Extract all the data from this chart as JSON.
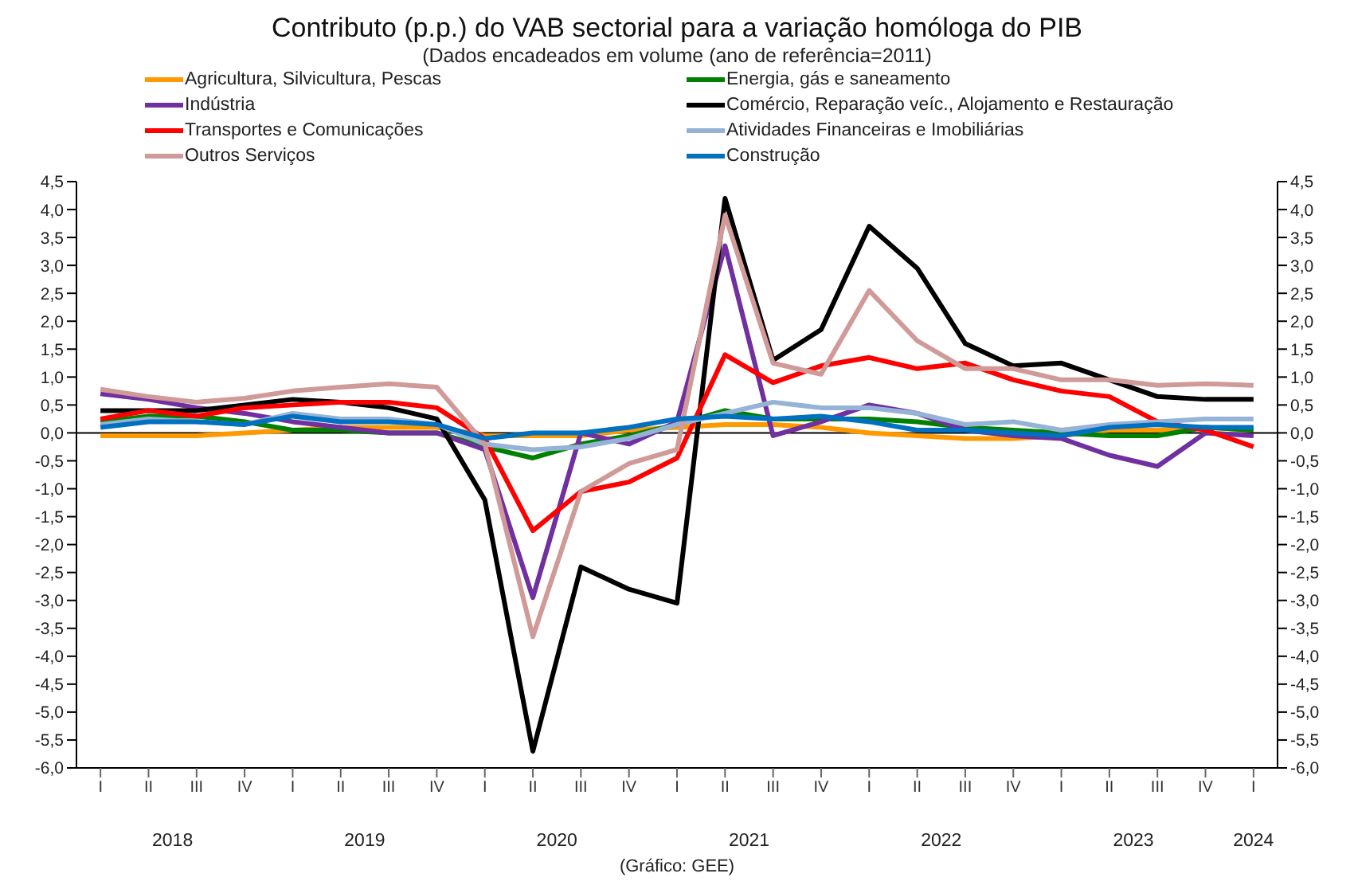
{
  "chart_data": {
    "type": "line",
    "title": "Contributo (p.p.) do VAB sectorial para a variação homóloga do PIB",
    "subtitle": "(Dados encadeados em volume  (ano de referência=2011)",
    "categories": [
      "I",
      "II",
      "III",
      "IV",
      "I",
      "II",
      "III",
      "IV",
      "I",
      "II",
      "III",
      "IV",
      "I",
      "II",
      "III",
      "IV",
      "I",
      "II",
      "III",
      "IV",
      "I",
      "II",
      "III",
      "IV",
      "I"
    ],
    "series": [
      {
        "name": "Agricultura, Silvicultura, Pescas",
        "color": "#ff9900",
        "values": [
          -0.05,
          -0.05,
          -0.05,
          0.0,
          0.05,
          0.1,
          0.1,
          0.1,
          -0.05,
          -0.05,
          -0.05,
          0.05,
          0.1,
          0.15,
          0.15,
          0.1,
          0.0,
          -0.05,
          -0.1,
          -0.1,
          -0.05,
          0.05,
          0.05,
          0.1,
          0.05
        ]
      },
      {
        "name": "Energia, gás e saneamento",
        "color": "#008000",
        "values": [
          0.2,
          0.3,
          0.3,
          0.2,
          0.05,
          0.05,
          0.0,
          0.0,
          -0.25,
          -0.45,
          -0.2,
          -0.05,
          0.15,
          0.4,
          0.25,
          0.25,
          0.25,
          0.2,
          0.1,
          0.05,
          0.0,
          -0.05,
          -0.05,
          0.1,
          0.05
        ]
      },
      {
        "name": "Indústria",
        "color": "#7030a0",
        "values": [
          0.7,
          0.6,
          0.45,
          0.35,
          0.2,
          0.1,
          0.0,
          0.0,
          -0.3,
          -2.95,
          0.0,
          -0.2,
          0.2,
          3.35,
          -0.05,
          0.2,
          0.5,
          0.35,
          0.05,
          -0.05,
          -0.1,
          -0.4,
          -0.6,
          0.0,
          -0.05
        ]
      },
      {
        "name": "Comércio, Reparação veíc., Alojamento e Restauração",
        "color": "#000000",
        "values": [
          0.4,
          0.4,
          0.4,
          0.5,
          0.6,
          0.55,
          0.45,
          0.25,
          -1.2,
          -5.7,
          -2.4,
          -2.8,
          -3.05,
          4.2,
          1.3,
          1.85,
          3.7,
          2.95,
          1.6,
          1.2,
          1.25,
          0.95,
          0.65,
          0.6,
          0.6
        ]
      },
      {
        "name": "Transportes e Comunicações",
        "color": "#ff0000",
        "values": [
          0.25,
          0.4,
          0.3,
          0.45,
          0.5,
          0.55,
          0.55,
          0.45,
          -0.1,
          -1.75,
          -1.05,
          -0.88,
          -0.45,
          1.4,
          0.9,
          1.2,
          1.35,
          1.15,
          1.25,
          0.95,
          0.75,
          0.65,
          0.2,
          0.05,
          -0.25
        ]
      },
      {
        "name": "Atividades Financeiras e Imobiliárias",
        "color": "#95b3d7",
        "values": [
          0.15,
          0.25,
          0.2,
          0.15,
          0.35,
          0.25,
          0.25,
          0.15,
          -0.2,
          -0.3,
          -0.25,
          -0.1,
          0.15,
          0.35,
          0.55,
          0.45,
          0.45,
          0.35,
          0.15,
          0.2,
          0.05,
          0.15,
          0.2,
          0.25,
          0.25
        ]
      },
      {
        "name": "Outros Serviços",
        "color": "#d09a99",
        "values": [
          0.78,
          0.65,
          0.55,
          0.62,
          0.75,
          0.82,
          0.88,
          0.82,
          -0.2,
          -3.65,
          -1.05,
          -0.55,
          -0.3,
          3.9,
          1.25,
          1.05,
          2.55,
          1.65,
          1.15,
          1.15,
          0.95,
          0.95,
          0.85,
          0.88,
          0.85
        ]
      },
      {
        "name": "Construção",
        "color": "#0070c0",
        "values": [
          0.1,
          0.2,
          0.2,
          0.15,
          0.3,
          0.2,
          0.2,
          0.15,
          -0.1,
          0.0,
          0.0,
          0.1,
          0.25,
          0.3,
          0.25,
          0.3,
          0.2,
          0.05,
          0.05,
          0.0,
          -0.05,
          0.1,
          0.15,
          0.1,
          0.1
        ]
      }
    ],
    "ylim": [
      -6,
      4.5
    ],
    "yticks": [
      {
        "value": -6,
        "label": "-6,0"
      },
      {
        "value": -5.5,
        "label": "-5,5"
      },
      {
        "value": -5,
        "label": "-5,0"
      },
      {
        "value": -4.5,
        "label": "-4,5"
      },
      {
        "value": -4,
        "label": "-4,0"
      },
      {
        "value": -3.5,
        "label": "-3,5"
      },
      {
        "value": -3,
        "label": "-3,0"
      },
      {
        "value": -2.5,
        "label": "-2,5"
      },
      {
        "value": -2,
        "label": "-2,0"
      },
      {
        "value": -1.5,
        "label": "-1,5"
      },
      {
        "value": -1,
        "label": "-1,0"
      },
      {
        "value": -0.5,
        "label": "-0,5"
      },
      {
        "value": 0,
        "label": "0,0"
      },
      {
        "value": 0.5,
        "label": "0,5"
      },
      {
        "value": 1,
        "label": "1,0"
      },
      {
        "value": 1.5,
        "label": "1,5"
      },
      {
        "value": 2,
        "label": "2,0"
      },
      {
        "value": 2.5,
        "label": "2,5"
      },
      {
        "value": 3,
        "label": "3,0"
      },
      {
        "value": 3.5,
        "label": "3,5"
      },
      {
        "value": 4,
        "label": "4,0"
      },
      {
        "value": 4.5,
        "label": "4,5"
      }
    ],
    "y2lim": [
      -6,
      4.5
    ],
    "y2ticks": [
      {
        "value": -6,
        "label": "-6,0"
      },
      {
        "value": -5.5,
        "label": "-5,5"
      },
      {
        "value": -5,
        "label": "-5,0"
      },
      {
        "value": -4.5,
        "label": "-4,5"
      },
      {
        "value": -4,
        "label": "-4,0"
      },
      {
        "value": -3.5,
        "label": "-3,5"
      },
      {
        "value": -3,
        "label": "-3,0"
      },
      {
        "value": -2.5,
        "label": "-2,5"
      },
      {
        "value": -2,
        "label": "-2,0"
      },
      {
        "value": -1.5,
        "label": "-1,5"
      },
      {
        "value": -1,
        "label": "-1,0"
      },
      {
        "value": -0.5,
        "label": "-0,5"
      },
      {
        "value": 0,
        "label": "0,0"
      },
      {
        "value": 0.5,
        "label": "0,5"
      },
      {
        "value": 1,
        "label": "1,0"
      },
      {
        "value": 1.5,
        "label": "1,5"
      },
      {
        "value": 2,
        "label": "2,0"
      },
      {
        "value": 2.5,
        "label": "2,5"
      },
      {
        "value": 3,
        "label": "3,0"
      },
      {
        "value": 3.5,
        "label": "3,5"
      },
      {
        "value": 4,
        "label": "4,0"
      },
      {
        "value": 4.5,
        "label": "4,5"
      }
    ],
    "ref_lines": [
      {
        "axis": "y",
        "value": 0,
        "color": "#000000"
      }
    ],
    "annotations": [
      "2018",
      "2019",
      "2020",
      "2021",
      "2022",
      "2023",
      "2024",
      "(Gráfico: GEE)"
    ],
    "grid": false,
    "legend": "top",
    "marker": "none",
    "line_style": "solid"
  }
}
